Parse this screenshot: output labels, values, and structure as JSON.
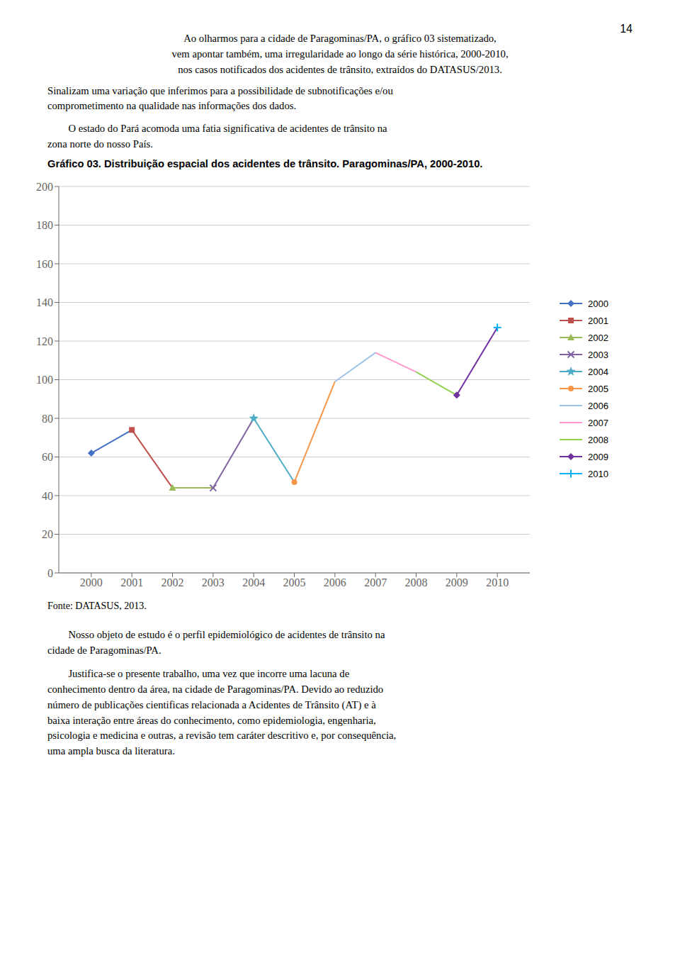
{
  "chart_data": {
    "type": "line",
    "title": "Gráfico 03. Distribuição espacial dos acidentes de trânsito. Paragominas/PA, 2000-2010.",
    "x": [
      2000,
      2001,
      2002,
      2003,
      2004,
      2005,
      2006,
      2007,
      2008,
      2009,
      2010
    ],
    "xlim": [
      1999.2,
      2010.8
    ],
    "xticks": [
      2000,
      2001,
      2002,
      2003,
      2004,
      2005,
      2006,
      2007,
      2008,
      2009,
      2010
    ],
    "ylim": [
      0,
      200
    ],
    "yticks": [
      0,
      20,
      40,
      60,
      80,
      100,
      120,
      140,
      160,
      180,
      200
    ],
    "grid": true,
    "legend": "right",
    "series": [
      {
        "name": "2000",
        "color": "#4472C4",
        "marker": "diamond",
        "values": [
          62,
          74,
          null,
          null,
          null,
          null,
          null,
          null,
          null,
          null,
          null
        ]
      },
      {
        "name": "2001",
        "color": "#C0504D",
        "marker": "square",
        "values": [
          null,
          74,
          44,
          null,
          null,
          null,
          null,
          null,
          null,
          null,
          null
        ]
      },
      {
        "name": "2002",
        "color": "#9BBB59",
        "marker": "triangle",
        "values": [
          null,
          null,
          44,
          44,
          null,
          null,
          null,
          null,
          null,
          null,
          null
        ]
      },
      {
        "name": "2003",
        "color": "#8064A2",
        "marker": "x",
        "values": [
          null,
          null,
          null,
          44,
          80,
          null,
          null,
          null,
          null,
          null,
          null
        ]
      },
      {
        "name": "2004",
        "color": "#4BACC6",
        "marker": "star",
        "values": [
          null,
          null,
          null,
          null,
          80,
          47,
          null,
          null,
          null,
          null,
          null
        ]
      },
      {
        "name": "2005",
        "color": "#F79646",
        "marker": "circle",
        "values": [
          null,
          null,
          null,
          null,
          null,
          47,
          99,
          null,
          null,
          null,
          null
        ]
      },
      {
        "name": "2006",
        "color": "#9DC3E6",
        "marker": "none",
        "values": [
          null,
          null,
          null,
          null,
          null,
          null,
          99,
          114,
          null,
          null,
          null
        ]
      },
      {
        "name": "2007",
        "color": "#FF99CC",
        "marker": "none",
        "values": [
          null,
          null,
          null,
          null,
          null,
          null,
          null,
          114,
          104,
          null,
          null
        ]
      },
      {
        "name": "2008",
        "color": "#92D050",
        "marker": "none",
        "values": [
          null,
          null,
          null,
          null,
          null,
          null,
          null,
          null,
          104,
          92,
          null
        ]
      },
      {
        "name": "2009",
        "color": "#7030A0",
        "marker": "diamond",
        "values": [
          null,
          null,
          null,
          null,
          null,
          null,
          null,
          null,
          null,
          92,
          127
        ]
      },
      {
        "name": "2010",
        "color": "#00B0F0",
        "marker": "plus",
        "values": [
          null,
          null,
          null,
          null,
          null,
          null,
          null,
          null,
          null,
          null,
          127
        ]
      }
    ],
    "annotations": [
      "14",
      "Ao olharmos para a cidade de Paragominas/PA, o gráfico 03 sistematizado,",
      "vem apontar também, uma irregularidade ao longo da série histórica, 2000-2010,",
      "nos casos notificados dos acidentes de trânsito, extraídos do DATASUS/2013.",
      "Sinalizam uma variação que inferimos para a possibilidade de subnotificações e/ou",
      "comprometimento na qualidade nas informações dos dados.",
      "        O estado do Pará acomoda uma fatia significativa de acidentes de trânsito na",
      "zona norte do nosso País.",
      "Fonte: DATASUS, 2013.",
      "        Nosso objeto de estudo é o perfil epidemiológico de acidentes de trânsito na",
      "cidade de Paragominas/PA.",
      "        Justifica-se o presente trabalho, uma vez que incorre uma lacuna de",
      "conhecimento dentro da área, na cidade de Paragominas/PA. Devido ao reduzido",
      "número de publicações cientificas relacionada a Acidentes de Trânsito (AT) e à",
      "baixa interação entre áreas do conhecimento, como epidemiologia, engenharia,",
      "psicologia e medicina e outras, a revisão tem caráter descritivo e, por consequência,",
      "uma ampla busca da literatura."
    ]
  }
}
